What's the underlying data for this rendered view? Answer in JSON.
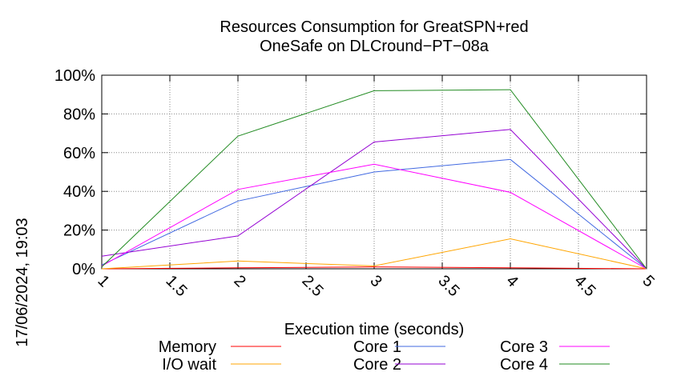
{
  "chart_data": {
    "type": "line",
    "title": [
      "Resources Consumption for GreatSPN+red",
      "OneSafe on DLCround−PT−08a"
    ],
    "xlabel": "Execution time (seconds)",
    "ylabel": "",
    "side_label": "17/06/2024, 19:03",
    "xlim": [
      1,
      5
    ],
    "ylim": [
      0,
      100
    ],
    "x_ticks": [
      1,
      1.5,
      2,
      2.5,
      3,
      3.5,
      4,
      4.5,
      5
    ],
    "x_tick_labels": [
      "1",
      "1.5",
      "2",
      "2.5",
      "3",
      "3.5",
      "4",
      "4.5",
      "5"
    ],
    "y_ticks": [
      0,
      20,
      40,
      60,
      80,
      100
    ],
    "y_tick_labels": [
      "0%",
      "20%",
      "40%",
      "60%",
      "80%",
      "100%"
    ],
    "grid": true,
    "legend_position": "bottom",
    "x": [
      1,
      2,
      3,
      4,
      5
    ],
    "series": [
      {
        "name": "Memory",
        "color": "#ff0000",
        "values": [
          0,
          0.5,
          1,
          0.5,
          0
        ]
      },
      {
        "name": "I/O wait",
        "color": "#ffa500",
        "values": [
          0,
          4,
          1.5,
          15.5,
          0
        ]
      },
      {
        "name": "Core 1",
        "color": "#4169e1",
        "values": [
          2,
          35,
          50,
          56.5,
          0
        ]
      },
      {
        "name": "Core 2",
        "color": "#9400d3",
        "values": [
          6.5,
          17,
          65.5,
          72,
          0
        ]
      },
      {
        "name": "Core 3",
        "color": "#ff00ff",
        "values": [
          1.5,
          41,
          54,
          39.5,
          0
        ]
      },
      {
        "name": "Core 4",
        "color": "#228b22",
        "values": [
          1,
          68.5,
          92,
          92.5,
          0
        ]
      }
    ]
  }
}
